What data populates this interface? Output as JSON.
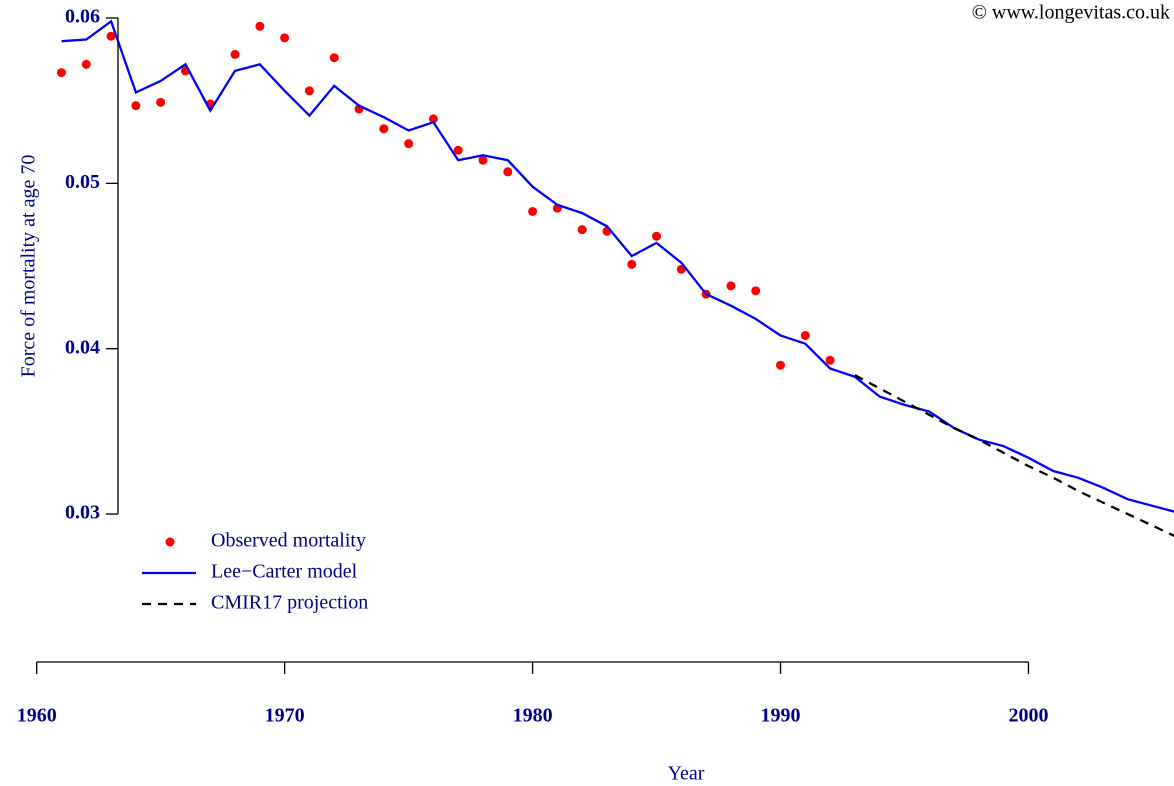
{
  "chart_data": {
    "type": "line",
    "annotation": "© www.longevitas.co.uk",
    "x_label": "Year",
    "y_label": "Force of mortality at age 70",
    "xlim": [
      1958.52,
      2005.87
    ],
    "ylim": [
      0.02722,
      0.06109
    ],
    "xticks": [
      1960,
      1970,
      1980,
      1990,
      2000
    ],
    "yticks": [
      0.03,
      0.04,
      0.05,
      0.06
    ],
    "legend": "bottom-left",
    "series": [
      {
        "name": "Observed mortality",
        "color": "#ff0000",
        "style": "points",
        "x": [
          1961,
          1962,
          1963,
          1964,
          1965,
          1966,
          1967,
          1968,
          1969,
          1970,
          1971,
          1972,
          1973,
          1974,
          1975,
          1976,
          1977,
          1978,
          1979,
          1980,
          1981,
          1982,
          1983,
          1984,
          1985,
          1986,
          1987,
          1988,
          1989,
          1990,
          1991,
          1992
        ],
        "values": [
          0.0567,
          0.0572,
          0.0589,
          0.0547,
          0.0549,
          0.0568,
          0.0548,
          0.0578,
          0.0595,
          0.0588,
          0.0556,
          0.0576,
          0.0545,
          0.0533,
          0.0524,
          0.0539,
          0.052,
          0.0514,
          0.0507,
          0.0483,
          0.0485,
          0.0472,
          0.0471,
          0.0451,
          0.0468,
          0.0448,
          0.0433,
          0.0438,
          0.0435,
          0.039,
          0.0408,
          0.0393
        ]
      },
      {
        "name": "Lee−Carter model",
        "color": "#0000ff",
        "style": "solid",
        "x": [
          1961,
          1962,
          1963,
          1964,
          1965,
          1966,
          1967,
          1968,
          1969,
          1970,
          1971,
          1972,
          1973,
          1974,
          1975,
          1976,
          1977,
          1978,
          1979,
          1980,
          1981,
          1982,
          1983,
          1984,
          1985,
          1986,
          1987,
          1988,
          1989,
          1990,
          1991,
          1992,
          1993,
          1994,
          1995,
          1996,
          1997,
          1998,
          1999,
          2000,
          2001,
          2002,
          2003,
          2004,
          2005,
          2006
        ],
        "values": [
          0.0586,
          0.0587,
          0.0598,
          0.0555,
          0.0562,
          0.0572,
          0.0544,
          0.0568,
          0.0572,
          0.0556,
          0.0541,
          0.0559,
          0.0547,
          0.054,
          0.0532,
          0.0537,
          0.0514,
          0.0517,
          0.0514,
          0.0498,
          0.0487,
          0.0482,
          0.0474,
          0.0456,
          0.0464,
          0.0452,
          0.0433,
          0.0426,
          0.0418,
          0.0408,
          0.0403,
          0.0388,
          0.0383,
          0.0371,
          0.0366,
          0.0362,
          0.0352,
          0.0345,
          0.0341,
          0.0334,
          0.0326,
          0.0322,
          0.0316,
          0.0309,
          0.0305,
          0.0301
        ]
      },
      {
        "name": "CMIR17 projection",
        "color": "#000000",
        "style": "dashed",
        "x": [
          1993,
          1994,
          1995,
          1996,
          1997,
          1998,
          1999,
          2000,
          2001,
          2002,
          2003,
          2004,
          2005,
          2006
        ],
        "values": [
          0.0384,
          0.0376,
          0.0368,
          0.036,
          0.0352,
          0.0345,
          0.0337,
          0.0329,
          0.0322,
          0.0314,
          0.0307,
          0.03,
          0.0293,
          0.0286
        ]
      }
    ]
  }
}
